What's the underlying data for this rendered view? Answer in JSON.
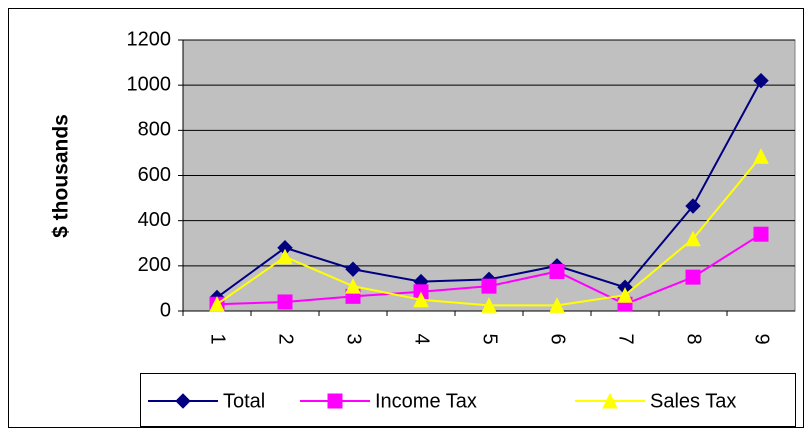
{
  "chart_data": {
    "type": "line",
    "y_label": "$ thousands",
    "categories": [
      "1",
      "2",
      "3",
      "4",
      "5",
      "6",
      "7",
      "8",
      "9"
    ],
    "series": [
      {
        "name": "Total",
        "color": "#000080",
        "marker": "diamond",
        "values": [
          60,
          280,
          185,
          130,
          140,
          200,
          105,
          465,
          1020
        ]
      },
      {
        "name": "Income Tax",
        "color": "#ff00ff",
        "marker": "square",
        "values": [
          30,
          40,
          65,
          85,
          110,
          175,
          30,
          150,
          340
        ]
      },
      {
        "name": "Sales Tax",
        "color": "#ffff00",
        "marker": "triangle",
        "values": [
          30,
          240,
          110,
          50,
          25,
          25,
          70,
          320,
          685
        ]
      }
    ],
    "ylim": [
      0,
      1200
    ],
    "yticks": [
      0,
      200,
      400,
      600,
      800,
      1000,
      1200
    ],
    "grid": true,
    "legend": "bottom"
  }
}
